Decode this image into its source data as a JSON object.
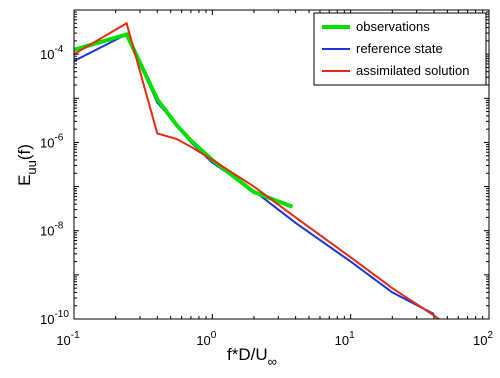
{
  "chart_data": {
    "type": "line",
    "x_scale": "log",
    "y_scale": "log",
    "xlim": [
      0.1,
      100
    ],
    "ylim": [
      1e-10,
      0.001
    ],
    "grid": false,
    "legend_position": "top-right",
    "xlabel": {
      "base": "f*D/U",
      "sub": "∞"
    },
    "ylabel": {
      "base": "E",
      "sub": "uu",
      "tail": "(f)"
    },
    "x_ticks": [
      {
        "value": 0.1,
        "base": "10",
        "exp": "-1"
      },
      {
        "value": 1,
        "base": "10",
        "exp": "0"
      },
      {
        "value": 10,
        "base": "10",
        "exp": "1"
      },
      {
        "value": 100,
        "base": "10",
        "exp": "2"
      }
    ],
    "y_ticks": [
      {
        "value": 1e-10,
        "base": "10",
        "exp": "-10"
      },
      {
        "value": 1e-08,
        "base": "10",
        "exp": "-8"
      },
      {
        "value": 1e-06,
        "base": "10",
        "exp": "-6"
      },
      {
        "value": 0.0001,
        "base": "10",
        "exp": "-4"
      }
    ],
    "series": [
      {
        "name": "observations",
        "color": "#00e000",
        "width": 4,
        "x": [
          0.1,
          0.24,
          0.4,
          0.55,
          0.7,
          1.0,
          2.0,
          3.8
        ],
        "y": [
          0.000125,
          0.00028,
          9.5e-06,
          2.5e-06,
          1.1e-06,
          4e-07,
          7.5e-08,
          3.5e-08
        ]
      },
      {
        "name": "reference state",
        "color": "#1a33e0",
        "width": 2,
        "x": [
          0.1,
          0.24,
          0.4,
          0.55,
          0.7,
          1.0,
          2.0,
          4.0,
          10,
          20,
          40
        ],
        "y": [
          7e-05,
          0.00028,
          8e-06,
          2.6e-06,
          1e-06,
          3.5e-07,
          8e-08,
          1.5e-08,
          2e-09,
          4e-10,
          1.3e-10
        ]
      },
      {
        "name": "assimilated solution",
        "color": "#e82a12",
        "width": 2,
        "x": [
          0.1,
          0.24,
          0.4,
          0.55,
          0.7,
          1.0,
          2.0,
          4.0,
          10,
          20,
          40,
          80
        ],
        "y": [
          0.0001,
          0.0005,
          1.6e-06,
          1.2e-06,
          8e-07,
          4e-07,
          1e-07,
          2e-08,
          2.5e-09,
          5e-10,
          1.2e-10,
          2.5e-11
        ]
      }
    ]
  }
}
